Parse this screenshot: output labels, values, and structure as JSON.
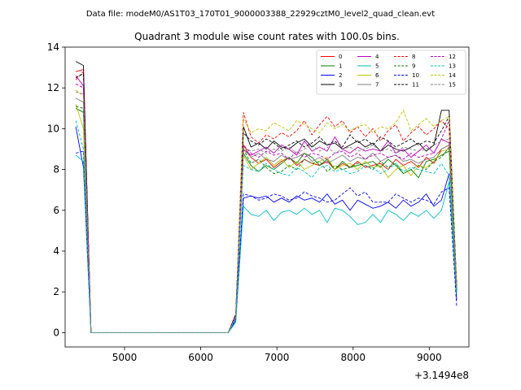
{
  "suptitle": "Data file: modeM0/AS1T03_170T01_9000003388_22929cztM0_level2_quad_clean.evt",
  "chart_data": {
    "type": "line",
    "title": "Quadrant 3 module wise count rates with 100.0s bins.",
    "xlabel": "",
    "ylabel": "",
    "x_offset_label": "+3.1494e8",
    "xlim": [
      4220,
      9520
    ],
    "ylim": [
      -0.7,
      14
    ],
    "xticks": [
      5000,
      6000,
      7000,
      8000,
      9000
    ],
    "yticks": [
      0,
      2,
      4,
      6,
      8,
      10,
      12,
      14
    ],
    "x": [
      4360,
      4460,
      4560,
      6360,
      6460,
      6560,
      6660,
      6760,
      6860,
      6960,
      7060,
      7160,
      7260,
      7360,
      7460,
      7560,
      7660,
      7760,
      7860,
      7960,
      8060,
      8160,
      8260,
      8360,
      8460,
      8560,
      8660,
      8760,
      8860,
      8960,
      9060,
      9160,
      9260,
      9360
    ],
    "grid": false,
    "legend": {
      "placement": "top-right",
      "ncol": 4
    },
    "series": [
      {
        "name": "0",
        "color": "#ff0000",
        "dash": false,
        "values": [
          12.8,
          12.9,
          0,
          0,
          0.9,
          9.2,
          8.6,
          8.3,
          8.5,
          8.1,
          8.4,
          8.6,
          8.2,
          8.5,
          8.3,
          8.2,
          8.4,
          8.0,
          8.3,
          8.1,
          8.4,
          8.1,
          8.2,
          8.3,
          8.0,
          8.5,
          8.2,
          8.4,
          8.1,
          8.6,
          8.3,
          9.0,
          9.2,
          2.2
        ]
      },
      {
        "name": "1",
        "color": "#008000",
        "dash": false,
        "values": [
          11.0,
          10.8,
          0,
          0,
          0.8,
          8.8,
          8.2,
          7.9,
          8.2,
          8.0,
          8.3,
          8.6,
          8.3,
          8.8,
          8.6,
          8.2,
          8.5,
          8.0,
          8.4,
          8.1,
          8.2,
          8.3,
          8.4,
          8.1,
          8.5,
          8.2,
          7.8,
          8.0,
          7.6,
          8.4,
          8.5,
          8.7,
          8.9,
          2.1
        ]
      },
      {
        "name": "2",
        "color": "#0000ff",
        "dash": false,
        "values": [
          10.1,
          8.1,
          0,
          0,
          0.6,
          6.6,
          6.7,
          6.6,
          6.7,
          6.4,
          6.6,
          6.4,
          6.7,
          6.5,
          6.6,
          6.4,
          6.8,
          6.3,
          6.5,
          6.0,
          6.5,
          6.3,
          6.1,
          6.2,
          6.4,
          6.1,
          6.5,
          6.2,
          6.4,
          6.8,
          6.2,
          6.5,
          7.8,
          1.6
        ]
      },
      {
        "name": "3",
        "color": "#000000",
        "dash": false,
        "values": [
          13.3,
          13.1,
          0,
          0,
          0.8,
          10.1,
          9.1,
          9.3,
          9.0,
          9.4,
          9.1,
          9.0,
          9.3,
          9.5,
          9.1,
          9.4,
          9.2,
          9.3,
          9.0,
          9.2,
          9.4,
          9.1,
          9.3,
          8.9,
          9.2,
          9.0,
          8.9,
          9.1,
          9.3,
          8.9,
          9.2,
          10.9,
          10.9,
          2.3
        ]
      },
      {
        "name": "4",
        "color": "#bf00bf",
        "dash": false,
        "values": [
          12.6,
          12.1,
          0,
          0,
          0.8,
          9.0,
          8.7,
          8.9,
          9.1,
          8.8,
          9.2,
          9.0,
          8.7,
          9.4,
          8.9,
          9.1,
          8.9,
          9.6,
          9.0,
          8.8,
          9.1,
          8.9,
          9.0,
          8.9,
          9.4,
          8.8,
          9.0,
          8.6,
          8.9,
          9.2,
          8.8,
          9.5,
          9.3,
          2.2
        ]
      },
      {
        "name": "5",
        "color": "#00bfbf",
        "dash": false,
        "values": [
          8.7,
          8.4,
          0,
          0,
          0.5,
          6.2,
          5.8,
          5.7,
          6.0,
          5.5,
          5.9,
          6.0,
          5.8,
          6.1,
          5.8,
          6.0,
          5.4,
          6.1,
          6.0,
          5.7,
          5.3,
          5.4,
          5.8,
          5.4,
          6.0,
          5.8,
          5.5,
          5.9,
          5.7,
          6.0,
          5.6,
          6.0,
          7.4,
          1.9
        ]
      },
      {
        "name": "6",
        "color": "#bfbf00",
        "dash": false,
        "values": [
          11.2,
          10.0,
          0,
          0,
          0.7,
          8.7,
          8.0,
          8.3,
          8.6,
          8.2,
          8.5,
          8.1,
          8.4,
          8.0,
          8.2,
          8.4,
          8.6,
          8.0,
          8.2,
          8.3,
          8.0,
          8.4,
          8.1,
          8.2,
          7.6,
          8.0,
          8.2,
          7.7,
          8.2,
          8.1,
          8.4,
          8.9,
          9.0,
          2.0
        ]
      },
      {
        "name": "7",
        "color": "#7f7f7f",
        "dash": false,
        "values": [
          11.5,
          11.3,
          0,
          0,
          0.8,
          9.0,
          8.6,
          8.8,
          8.5,
          8.4,
          8.7,
          8.5,
          8.6,
          8.8,
          8.4,
          8.6,
          8.3,
          8.5,
          8.7,
          8.4,
          8.6,
          8.5,
          8.8,
          8.4,
          8.6,
          8.7,
          8.4,
          8.5,
          8.3,
          8.5,
          8.6,
          9.0,
          9.2,
          2.1
        ]
      },
      {
        "name": "8",
        "color": "#ff0000",
        "dash": true,
        "values": [
          12.4,
          12.8,
          0,
          0,
          0.9,
          10.8,
          9.6,
          9.3,
          9.7,
          9.5,
          9.8,
          9.6,
          9.9,
          10.4,
          9.7,
          10.2,
          10.6,
          10.1,
          10.4,
          9.8,
          10.1,
          9.6,
          10.0,
          9.4,
          9.9,
          10.2,
          9.4,
          9.8,
          10.1,
          9.7,
          10.0,
          10.4,
          10.0,
          2.4
        ]
      },
      {
        "name": "9",
        "color": "#008000",
        "dash": true,
        "values": [
          11.1,
          11.0,
          0,
          0,
          0.8,
          9.0,
          8.3,
          8.5,
          8.1,
          7.8,
          7.9,
          8.2,
          8.0,
          8.5,
          8.3,
          8.4,
          7.9,
          8.2,
          8.0,
          8.1,
          8.3,
          8.2,
          8.0,
          8.4,
          8.1,
          8.3,
          7.8,
          8.0,
          8.2,
          8.0,
          8.4,
          8.6,
          9.1,
          2.0
        ]
      },
      {
        "name": "10",
        "color": "#0000ff",
        "dash": true,
        "values": [
          8.8,
          8.9,
          0,
          0,
          0.7,
          6.8,
          6.7,
          6.5,
          6.6,
          6.8,
          6.7,
          6.5,
          6.6,
          6.9,
          6.7,
          6.6,
          6.4,
          6.5,
          6.8,
          7.1,
          6.7,
          6.9,
          6.4,
          6.4,
          6.4,
          6.8,
          6.6,
          6.4,
          6.6,
          6.5,
          6.3,
          6.9,
          7.1,
          1.3
        ]
      },
      {
        "name": "11",
        "color": "#000000",
        "dash": true,
        "values": [
          12.5,
          12.7,
          0,
          0,
          0.9,
          9.8,
          9.4,
          9.2,
          9.5,
          9.3,
          9.0,
          9.2,
          9.4,
          9.1,
          9.3,
          9.6,
          9.2,
          9.4,
          9.1,
          9.7,
          9.3,
          9.5,
          9.2,
          9.6,
          9.4,
          9.1,
          9.3,
          9.5,
          9.2,
          9.4,
          9.3,
          9.9,
          10.6,
          2.3
        ]
      },
      {
        "name": "12",
        "color": "#bf00bf",
        "dash": true,
        "values": [
          12.2,
          12.0,
          0,
          0,
          0.8,
          9.2,
          8.8,
          8.6,
          8.9,
          8.7,
          8.8,
          8.5,
          8.9,
          8.6,
          8.8,
          8.7,
          8.5,
          8.8,
          8.9,
          8.6,
          8.8,
          8.5,
          8.7,
          8.8,
          8.6,
          8.7,
          8.5,
          8.8,
          8.6,
          8.7,
          8.8,
          9.5,
          10.4,
          2.2
        ]
      },
      {
        "name": "13",
        "color": "#00bfbf",
        "dash": true,
        "values": [
          10.4,
          9.0,
          0,
          0,
          0.7,
          8.2,
          8.0,
          7.9,
          8.3,
          8.0,
          7.8,
          7.7,
          8.1,
          7.9,
          7.6,
          8.1,
          8.2,
          7.9,
          8.0,
          7.8,
          7.9,
          8.2,
          8.1,
          7.8,
          8.0,
          8.3,
          7.9,
          8.1,
          8.0,
          7.9,
          7.8,
          8.3,
          7.7,
          2.0
        ]
      },
      {
        "name": "14",
        "color": "#bfbf00",
        "dash": true,
        "values": [
          11.9,
          11.6,
          0,
          0,
          0.8,
          10.5,
          9.8,
          10.0,
          9.9,
          10.3,
          10.1,
          9.9,
          10.4,
          10.2,
          10.0,
          9.8,
          10.3,
          10.0,
          10.2,
          9.9,
          10.1,
          10.2,
          9.8,
          10.1,
          10.0,
          10.3,
          10.9,
          9.9,
          10.2,
          10.5,
          10.1,
          10.4,
          10.6,
          2.4
        ]
      },
      {
        "name": "15",
        "color": "#7f7f7f",
        "dash": true,
        "values": [
          11.8,
          11.7,
          0,
          0,
          0.8,
          9.1,
          8.9,
          9.0,
          8.8,
          9.0,
          8.9,
          9.1,
          8.8,
          9.0,
          9.2,
          8.9,
          9.1,
          8.8,
          9.0,
          9.1,
          8.9,
          9.0,
          9.2,
          8.9,
          9.0,
          8.8,
          9.1,
          9.0,
          8.9,
          9.0,
          9.2,
          9.4,
          9.5,
          2.2
        ]
      }
    ]
  }
}
